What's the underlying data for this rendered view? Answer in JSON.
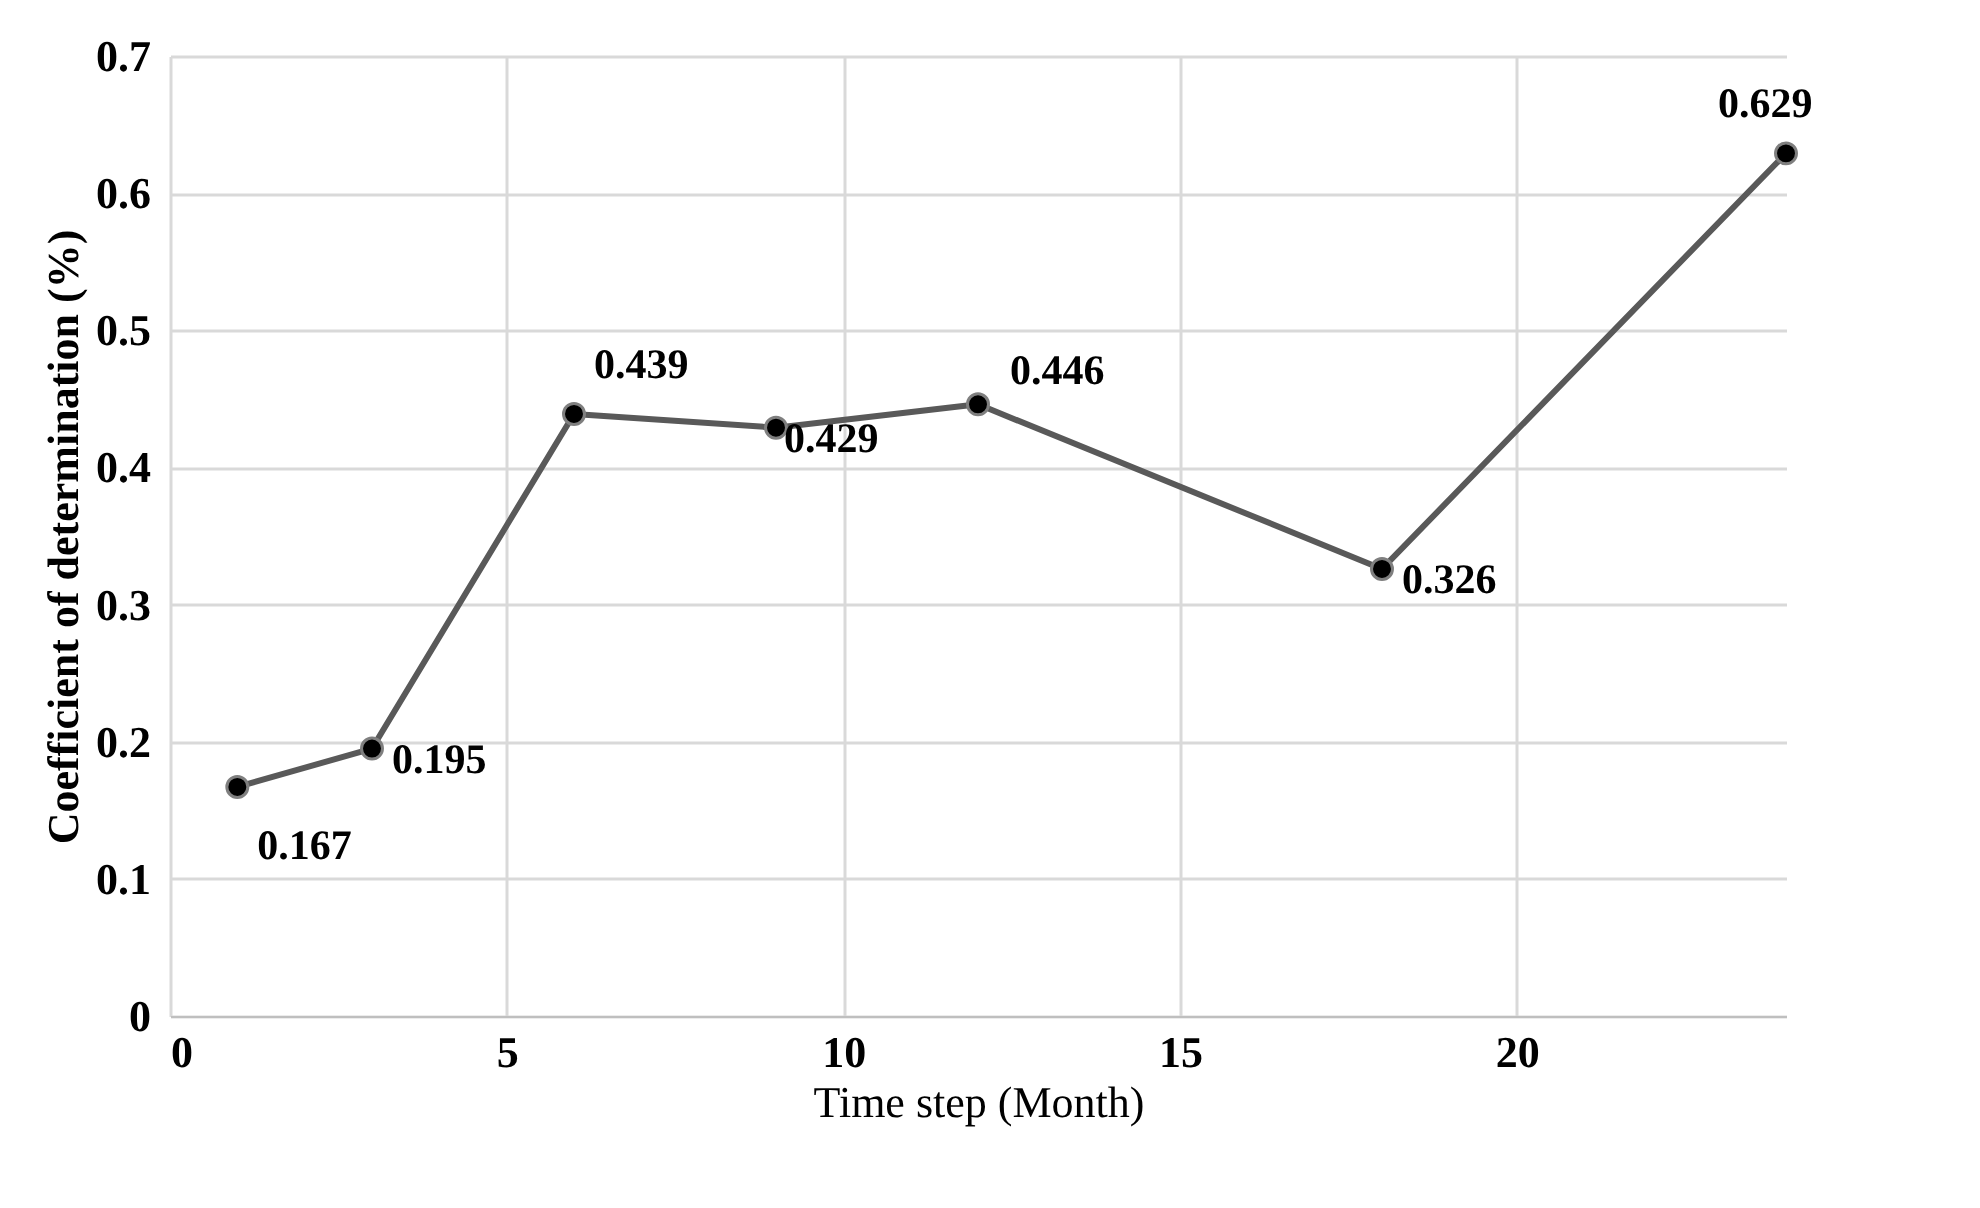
{
  "chart_data": {
    "type": "line",
    "xlabel": "Time step (Month)",
    "ylabel": "Coefficient of determination (%)",
    "x": [
      1,
      3,
      6,
      9,
      12,
      18,
      24
    ],
    "series": [
      {
        "color": "#595959",
        "values": [
          0.167,
          0.195,
          0.439,
          0.429,
          0.446,
          0.326,
          0.629
        ]
      }
    ],
    "xlim": [
      0,
      24
    ],
    "xticks": [
      0,
      5,
      10,
      15,
      20
    ],
    "ylim": [
      0,
      0.7
    ],
    "yticks": [
      0,
      0.1,
      0.2,
      0.3,
      0.4,
      0.5,
      0.6,
      0.7
    ],
    "grid": true,
    "marker": "circle",
    "line_style": "solid",
    "data_labels": true
  }
}
